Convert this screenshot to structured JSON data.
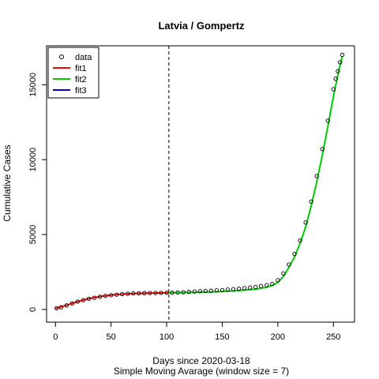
{
  "chart_data": {
    "type": "scatter",
    "title": "Latvia / Gompertz",
    "xlabel": "Days since 2020-03-18",
    "sublabel": "Simple Moving Avarage (window size = 7)",
    "ylabel": "Cumulative Cases",
    "xlim": [
      -8,
      269
    ],
    "ylim": [
      -850,
      17600
    ],
    "x_ticks": [
      0,
      50,
      100,
      150,
      200,
      250
    ],
    "y_ticks": [
      0,
      5000,
      10000,
      15000
    ],
    "vline_x": 102,
    "grid": false,
    "legend": {
      "position": "top-left",
      "entries": [
        {
          "label": "data",
          "kind": "point"
        },
        {
          "label": "fit1",
          "kind": "line",
          "color": "#ff0000"
        },
        {
          "label": "fit2",
          "kind": "line",
          "color": "#00cd00"
        },
        {
          "label": "fit3",
          "kind": "line",
          "color": "#0000cd"
        }
      ]
    },
    "data_points": {
      "x": [
        1,
        5,
        10,
        15,
        20,
        25,
        30,
        35,
        40,
        45,
        50,
        55,
        60,
        65,
        70,
        75,
        80,
        85,
        90,
        95,
        100,
        105,
        110,
        115,
        120,
        125,
        130,
        135,
        140,
        145,
        150,
        155,
        160,
        165,
        170,
        175,
        180,
        185,
        190,
        195,
        200,
        205,
        210,
        215,
        220,
        225,
        230,
        235,
        240,
        245,
        250,
        252,
        254,
        256,
        258
      ],
      "y": [
        80,
        140,
        270,
        400,
        520,
        620,
        710,
        780,
        840,
        900,
        950,
        990,
        1020,
        1050,
        1070,
        1080,
        1090,
        1095,
        1100,
        1105,
        1110,
        1115,
        1130,
        1150,
        1170,
        1190,
        1210,
        1230,
        1250,
        1270,
        1290,
        1320,
        1350,
        1380,
        1420,
        1460,
        1500,
        1560,
        1620,
        1700,
        1950,
        2400,
        3000,
        3700,
        4600,
        5800,
        7200,
        8900,
        10700,
        12600,
        14700,
        15400,
        15900,
        16500,
        17000
      ]
    },
    "series": [
      {
        "name": "fit1",
        "color": "#ff0000",
        "x": [
          0,
          10,
          20,
          30,
          40,
          50,
          60,
          70,
          80,
          90,
          102
        ],
        "y": [
          60,
          280,
          520,
          720,
          860,
          960,
          1020,
          1060,
          1080,
          1095,
          1110
        ]
      },
      {
        "name": "fit2",
        "color": "#00cd00",
        "x": [
          102,
          120,
          140,
          160,
          180,
          190,
          195,
          200,
          205,
          210,
          215,
          220,
          225,
          230,
          235,
          240,
          245,
          250,
          255,
          258
        ],
        "y": [
          1110,
          1130,
          1170,
          1230,
          1350,
          1480,
          1600,
          1800,
          2200,
          2800,
          3500,
          4400,
          5500,
          6900,
          8500,
          10300,
          12200,
          14200,
          16000,
          16900
        ]
      },
      {
        "name": "fit3",
        "color": "#0000cd",
        "x": [],
        "y": []
      }
    ]
  }
}
